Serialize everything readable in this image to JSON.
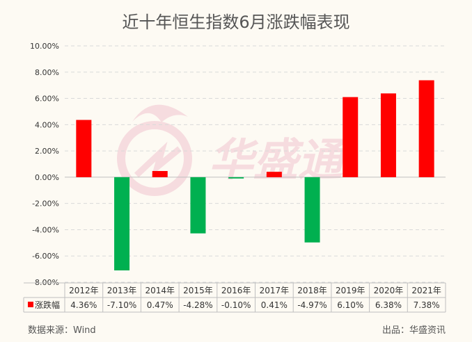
{
  "title": "近十年恒生指数6月涨跌幅表现",
  "source": "数据来源：Wind",
  "publisher": "出品：华盛资讯",
  "watermark": "华盛通",
  "colors": {
    "positive": "#ff0000",
    "negative": "#00b050",
    "grid": "#d9d9d9"
  },
  "chart_data": {
    "type": "bar",
    "title": "近十年恒生指数6月涨跌幅表现",
    "categories": [
      "2012年",
      "2013年",
      "2014年",
      "2015年",
      "2016年",
      "2017年",
      "2018年",
      "2019年",
      "2020年",
      "2021年"
    ],
    "series": [
      {
        "name": "涨跌幅",
        "values": [
          4.36,
          -7.1,
          0.47,
          -4.28,
          -0.1,
          0.41,
          -4.97,
          6.1,
          6.38,
          7.38
        ]
      }
    ],
    "data_labels": [
      "4.36%",
      "-7.10%",
      "0.47%",
      "-4.28%",
      "-0.10%",
      "0.41%",
      "-4.97%",
      "6.10%",
      "6.38%",
      "7.38%"
    ],
    "yticks": [
      "10.00%",
      "8.00%",
      "6.00%",
      "4.00%",
      "2.00%",
      "0.00%",
      "-2.00%",
      "-4.00%",
      "-6.00%",
      "-8.00%"
    ],
    "ylim": [
      -8,
      10
    ],
    "grid": true,
    "legend": "data-table"
  }
}
